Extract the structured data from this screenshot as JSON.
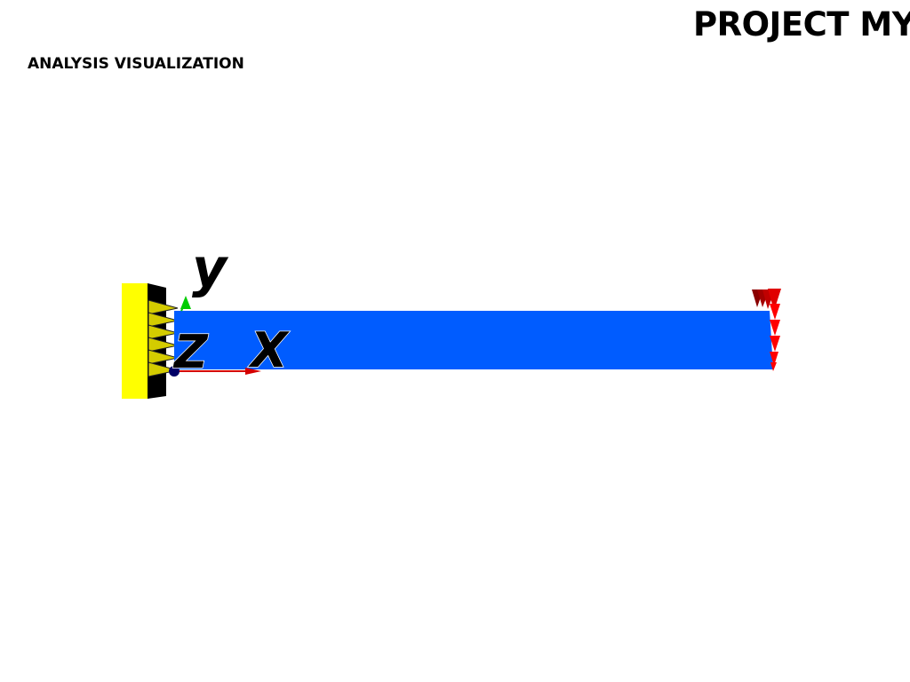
{
  "window": {
    "title": "PROJECT MYBEAM",
    "subtitle": "ANALYSIS VISUALIZATION"
  },
  "scene": {
    "beam_color": "#005cff",
    "support_color": "#ffff00",
    "spring_color": "#d4cc00",
    "load_arrow_color": "#ff0000",
    "axes": {
      "x": {
        "label": "X",
        "color": "#d40000"
      },
      "y": {
        "label": "y",
        "color": "#00cc00"
      },
      "z": {
        "label": "Z",
        "color": "#000066"
      }
    }
  }
}
